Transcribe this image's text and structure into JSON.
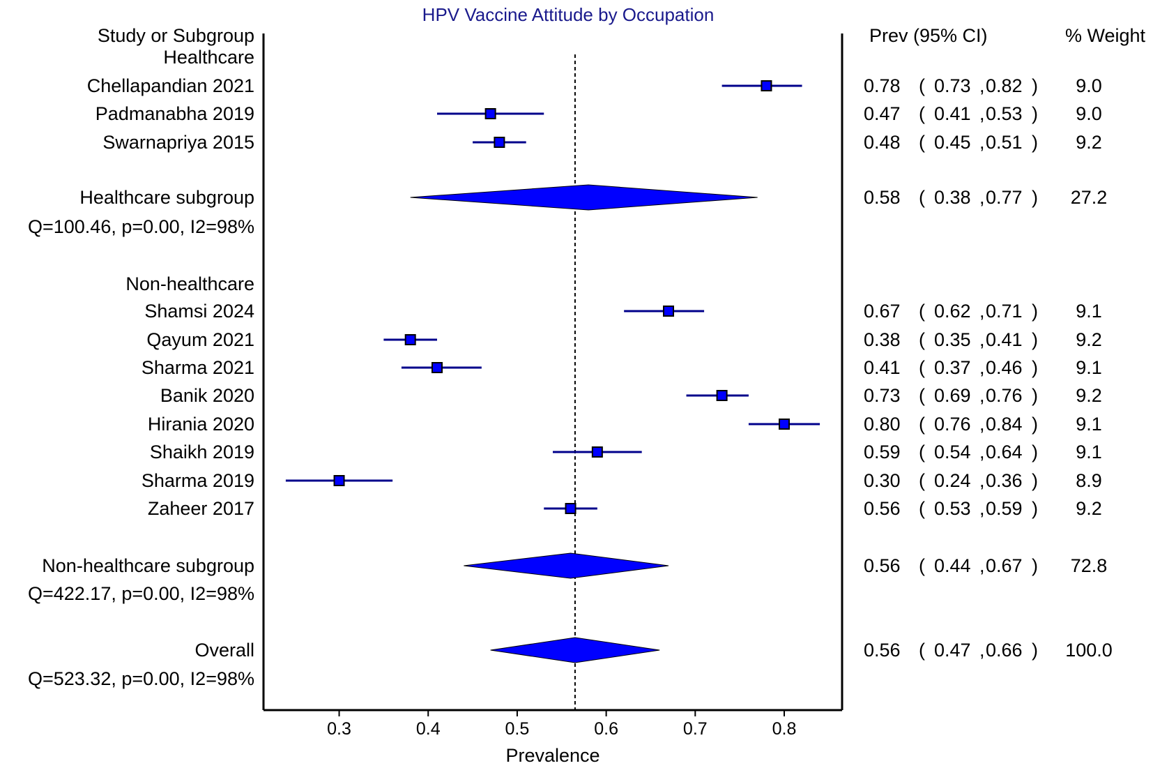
{
  "chart_data": {
    "type": "forest",
    "title": "HPV Vaccine Attitude by Occupation",
    "xlabel": "Prevalence",
    "xlim": [
      0.215,
      0.865
    ],
    "xticks": [
      "0.3",
      "0.4",
      "0.5",
      "0.6",
      "0.7",
      "0.8"
    ],
    "reference_line": 0.565,
    "headers": {
      "study": "Study or Subgroup",
      "estimate": "Prev (95% CI)",
      "weight": "% Weight"
    },
    "colors": {
      "marker": "#0000ff",
      "title": "#1a1a8c",
      "text": "#000000"
    },
    "groups": [
      {
        "name": "Healthcare",
        "studies": [
          {
            "label": "Chellapandian 2021",
            "est": 0.78,
            "lo": 0.73,
            "hi": 0.82,
            "est_text": "0.78",
            "lo_text": "0.73",
            "hi_text": "0.82",
            "weight": "9.0"
          },
          {
            "label": "Padmanabha 2019",
            "est": 0.47,
            "lo": 0.41,
            "hi": 0.53,
            "est_text": "0.47",
            "lo_text": "0.41",
            "hi_text": "0.53",
            "weight": "9.0"
          },
          {
            "label": "Swarnapriya 2015",
            "est": 0.48,
            "lo": 0.45,
            "hi": 0.51,
            "est_text": "0.48",
            "lo_text": "0.45",
            "hi_text": "0.51",
            "weight": "9.2"
          }
        ],
        "summary": {
          "label": "Healthcare subgroup",
          "est": 0.58,
          "lo": 0.38,
          "hi": 0.77,
          "est_text": "0.58",
          "lo_text": "0.38",
          "hi_text": "0.77",
          "weight": "27.2",
          "heterogeneity": "Q=100.46, p=0.00, I2=98%"
        }
      },
      {
        "name": "Non-healthcare",
        "studies": [
          {
            "label": "Shamsi 2024",
            "est": 0.67,
            "lo": 0.62,
            "hi": 0.71,
            "est_text": "0.67",
            "lo_text": "0.62",
            "hi_text": "0.71",
            "weight": "9.1"
          },
          {
            "label": "Qayum 2021",
            "est": 0.38,
            "lo": 0.35,
            "hi": 0.41,
            "est_text": "0.38",
            "lo_text": "0.35",
            "hi_text": "0.41",
            "weight": "9.2"
          },
          {
            "label": "Sharma 2021",
            "est": 0.41,
            "lo": 0.37,
            "hi": 0.46,
            "est_text": "0.41",
            "lo_text": "0.37",
            "hi_text": "0.46",
            "weight": "9.1"
          },
          {
            "label": "Banik 2020",
            "est": 0.73,
            "lo": 0.69,
            "hi": 0.76,
            "est_text": "0.73",
            "lo_text": "0.69",
            "hi_text": "0.76",
            "weight": "9.2"
          },
          {
            "label": "Hirania 2020",
            "est": 0.8,
            "lo": 0.76,
            "hi": 0.84,
            "est_text": "0.80",
            "lo_text": "0.76",
            "hi_text": "0.84",
            "weight": "9.1"
          },
          {
            "label": "Shaikh 2019",
            "est": 0.59,
            "lo": 0.54,
            "hi": 0.64,
            "est_text": "0.59",
            "lo_text": "0.54",
            "hi_text": "0.64",
            "weight": "9.1"
          },
          {
            "label": "Sharma 2019",
            "est": 0.3,
            "lo": 0.24,
            "hi": 0.36,
            "est_text": "0.30",
            "lo_text": "0.24",
            "hi_text": "0.36",
            "weight": "8.9"
          },
          {
            "label": "Zaheer 2017",
            "est": 0.56,
            "lo": 0.53,
            "hi": 0.59,
            "est_text": "0.56",
            "lo_text": "0.53",
            "hi_text": "0.59",
            "weight": "9.2"
          }
        ],
        "summary": {
          "label": "Non-healthcare subgroup",
          "est": 0.56,
          "lo": 0.44,
          "hi": 0.67,
          "est_text": "0.56",
          "lo_text": "0.44",
          "hi_text": "0.67",
          "weight": "72.8",
          "heterogeneity": "Q=422.17, p=0.00, I2=98%"
        }
      }
    ],
    "overall": {
      "label": "Overall",
      "est": 0.565,
      "lo": 0.47,
      "hi": 0.66,
      "est_text": "0.56",
      "lo_text": "0.47",
      "hi_text": "0.66",
      "weight": "100.0",
      "heterogeneity": "Q=523.32, p=0.00, I2=98%"
    }
  }
}
